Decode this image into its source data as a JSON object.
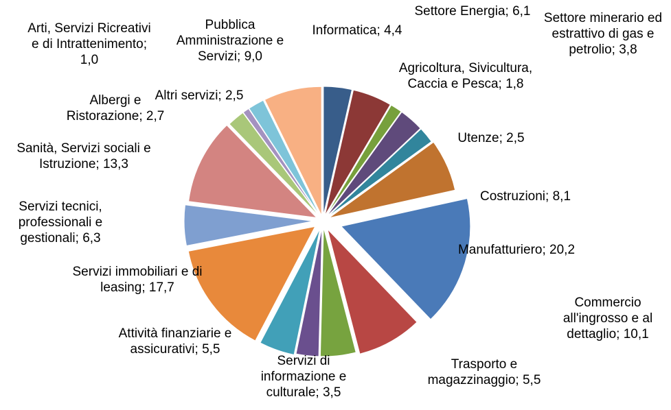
{
  "chart_data": {
    "type": "pie",
    "label_separator": ";",
    "categories": [
      "Informatica",
      "Settore Energia",
      "Agricoltura, Sivicultura, Caccia e Pesca",
      "Settore minerario ed estrattivo di gas e petrolio",
      "Utenze",
      "Costruzioni",
      "Manufatturiero",
      "Commercio all'ingrosso e al dettaglio",
      "Trasporto e magazzinaggio",
      "Servizi di informazione e culturale",
      "Attività finanziarie e assicurativi",
      "Servizi immobiliari e di leasing",
      "Servizi tecnici, professionali e gestionali",
      "Sanità, Servizi sociali e Istruzione",
      "Albergi e Ristorazione",
      "Arti, Servizi Ricreativi e di Intrattenimento",
      "Altri servizi",
      "Pubblica Amministrazione e Servizi"
    ],
    "values": [
      4.4,
      6.1,
      1.8,
      3.8,
      2.5,
      8.1,
      20.2,
      10.1,
      5.5,
      3.5,
      5.5,
      17.7,
      6.3,
      13.3,
      2.7,
      1.0,
      2.5,
      9.0
    ],
    "value_labels": [
      "4,4",
      "6,1",
      "1,8",
      "3,8",
      "2,5",
      "8,1",
      "20,2",
      "10,1",
      "5,5",
      "3,5",
      "5,5",
      "17,7",
      "6,3",
      "13,3",
      "2,7",
      "1,0",
      "2,5",
      "9,0"
    ],
    "colors": [
      "#385d8a",
      "#8c3836",
      "#77a03c",
      "#5f4a7b",
      "#31859c",
      "#c0732f",
      "#4a7ab8",
      "#b84744",
      "#77a33f",
      "#6a4f8e",
      "#41a0b8",
      "#e8893b",
      "#7f9fd0",
      "#d38481",
      "#a9c779",
      "#a492c0",
      "#7ec4d9",
      "#f8b083"
    ]
  }
}
